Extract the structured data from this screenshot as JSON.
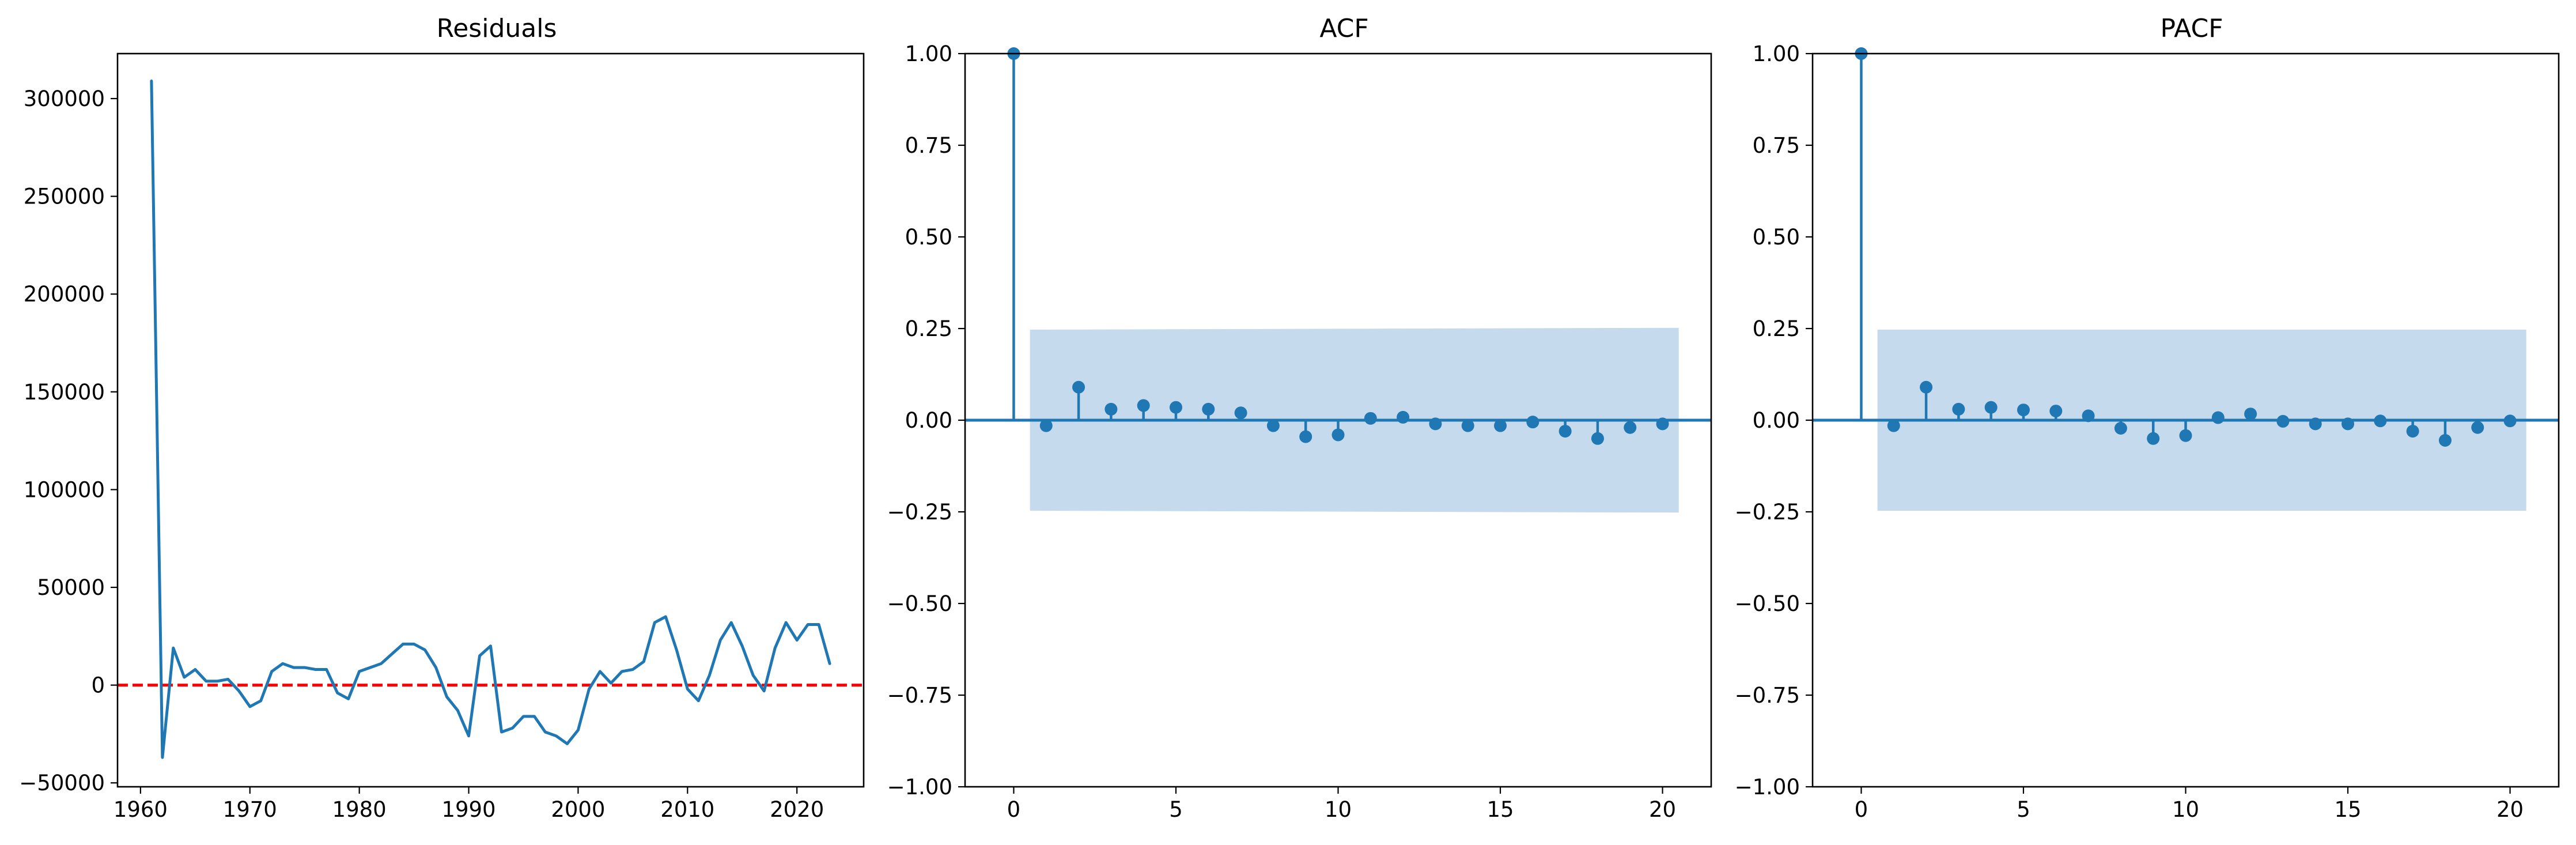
{
  "colors": {
    "line": "#1f77b4",
    "zero_line": "#ff0000",
    "confidence_band": "#c5dbed",
    "axes": "#000000",
    "background": "#ffffff"
  },
  "chart_data": [
    {
      "id": "residuals",
      "type": "line",
      "title": "Residuals",
      "xlabel": "",
      "ylabel": "",
      "xlim": [
        1957.9,
        2026.1
      ],
      "ylim": [
        -52000,
        323000
      ],
      "xticks": [
        1960,
        1970,
        1980,
        1990,
        2000,
        2010,
        2020
      ],
      "yticks": [
        -50000,
        0,
        50000,
        100000,
        150000,
        200000,
        250000,
        300000
      ],
      "grid": false,
      "x": [
        1961,
        1962,
        1963,
        1964,
        1965,
        1966,
        1967,
        1968,
        1969,
        1970,
        1971,
        1972,
        1973,
        1974,
        1975,
        1976,
        1977,
        1978,
        1979,
        1980,
        1981,
        1982,
        1983,
        1984,
        1985,
        1986,
        1987,
        1988,
        1989,
        1990,
        1991,
        1992,
        1993,
        1994,
        1995,
        1996,
        1997,
        1998,
        1999,
        2000,
        2001,
        2002,
        2003,
        2004,
        2005,
        2006,
        2007,
        2008,
        2009,
        2010,
        2011,
        2012,
        2013,
        2014,
        2015,
        2016,
        2017,
        2018,
        2019,
        2020,
        2021,
        2022,
        2023
      ],
      "y": [
        309000,
        -37000,
        19000,
        4000,
        8000,
        2000,
        2000,
        3000,
        -3000,
        -11000,
        -8000,
        7000,
        11000,
        9000,
        9000,
        8000,
        8000,
        -4000,
        -7000,
        7000,
        9000,
        11000,
        16000,
        21000,
        21000,
        18000,
        9000,
        -6000,
        -13000,
        -26000,
        15000,
        20000,
        -24000,
        -22000,
        -16000,
        -16000,
        -24000,
        -26000,
        -30000,
        -23000,
        -2000,
        7000,
        1000,
        7000,
        8000,
        12000,
        32000,
        35000,
        18000,
        -2000,
        -8000,
        5000,
        23000,
        32000,
        20000,
        5000,
        -3000,
        19000,
        32000,
        23000,
        31000,
        31000,
        11000
      ],
      "reference_line": {
        "y": 0,
        "style": "dashed"
      }
    },
    {
      "id": "acf",
      "type": "stem",
      "title": "ACF",
      "xlabel": "",
      "ylabel": "",
      "xlim": [
        -1.5,
        21.5
      ],
      "ylim": [
        -1.0,
        1.0
      ],
      "xticks": [
        0,
        5,
        10,
        15,
        20
      ],
      "yticks": [
        -1.0,
        -0.75,
        -0.5,
        -0.25,
        0.0,
        0.25,
        0.5,
        0.75,
        1.0
      ],
      "ytick_labels": [
        "−1.00",
        "−0.75",
        "−0.50",
        "−0.25",
        "0.00",
        "0.25",
        "0.50",
        "0.75",
        "1.00"
      ],
      "grid": false,
      "lags": [
        0,
        1,
        2,
        3,
        4,
        5,
        6,
        7,
        8,
        9,
        10,
        11,
        12,
        13,
        14,
        15,
        16,
        17,
        18,
        19,
        20
      ],
      "values": [
        1.0,
        -0.015,
        0.09,
        0.03,
        0.04,
        0.035,
        0.03,
        0.02,
        -0.015,
        -0.045,
        -0.04,
        0.005,
        0.008,
        -0.01,
        -0.015,
        -0.015,
        -0.005,
        -0.03,
        -0.05,
        -0.02,
        -0.01
      ],
      "confidence_interval": {
        "lag_start": 0.5,
        "lag_end": 20.5,
        "upper_start": 0.247,
        "upper_end": 0.252
      }
    },
    {
      "id": "pacf",
      "type": "stem",
      "title": "PACF",
      "xlabel": "",
      "ylabel": "",
      "xlim": [
        -1.5,
        21.5
      ],
      "ylim": [
        -1.0,
        1.0
      ],
      "xticks": [
        0,
        5,
        10,
        15,
        20
      ],
      "yticks": [
        -1.0,
        -0.75,
        -0.5,
        -0.25,
        0.0,
        0.25,
        0.5,
        0.75,
        1.0
      ],
      "ytick_labels": [
        "−1.00",
        "−0.75",
        "−0.50",
        "−0.25",
        "0.00",
        "0.25",
        "0.50",
        "0.75",
        "1.00"
      ],
      "grid": false,
      "lags": [
        0,
        1,
        2,
        3,
        4,
        5,
        6,
        7,
        8,
        9,
        10,
        11,
        12,
        13,
        14,
        15,
        16,
        17,
        18,
        19,
        20
      ],
      "values": [
        1.0,
        -0.015,
        0.09,
        0.03,
        0.035,
        0.028,
        0.025,
        0.012,
        -0.022,
        -0.05,
        -0.042,
        0.007,
        0.017,
        -0.003,
        -0.01,
        -0.01,
        -0.002,
        -0.03,
        -0.055,
        -0.02,
        -0.002
      ],
      "confidence_interval": {
        "lag_start": 0.5,
        "lag_end": 20.5,
        "upper_start": 0.247,
        "upper_end": 0.247
      }
    }
  ],
  "residual_tick_labels": {
    "x": [
      "1960",
      "1970",
      "1980",
      "1990",
      "2000",
      "2010",
      "2020"
    ],
    "y": [
      "−50000",
      "0",
      "50000",
      "100000",
      "150000",
      "200000",
      "250000",
      "300000"
    ]
  },
  "lag_tick_labels": [
    "0",
    "5",
    "10",
    "15",
    "20"
  ]
}
